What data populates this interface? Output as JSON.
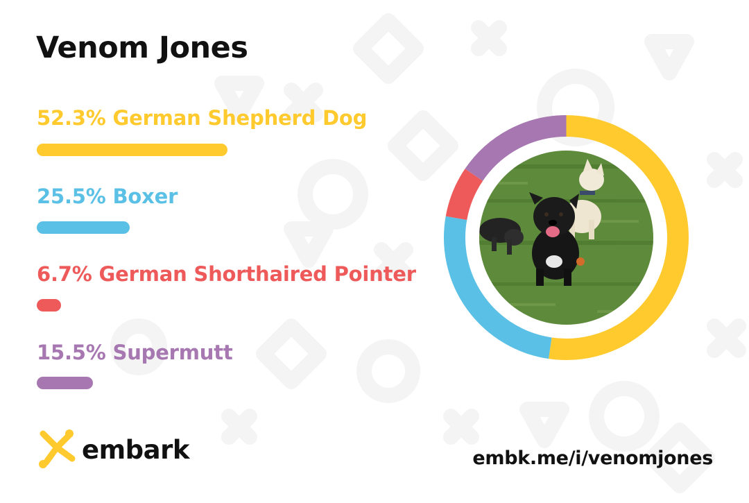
{
  "dog_name": "Venom Jones",
  "breeds": [
    {
      "label": "52.3% German Shepherd Dog",
      "percent": 52.3,
      "color": "#FFCA2D"
    },
    {
      "label": "25.5% Boxer",
      "percent": 25.5,
      "color": "#5BC0E6"
    },
    {
      "label": "6.7% German Shorthaired Pointer",
      "percent": 6.7,
      "color": "#EE5A5A"
    },
    {
      "label": "15.5% Supermutt",
      "percent": 15.5,
      "color": "#A677B0"
    }
  ],
  "brand": {
    "name": "embark",
    "logo_icon": "embark-logo-icon",
    "accent": "#FFCA2D"
  },
  "share_link": "embk.me/i/venomjones",
  "photo": {
    "icon": "dog-photo",
    "description_icon": "dogs-on-grass"
  }
}
